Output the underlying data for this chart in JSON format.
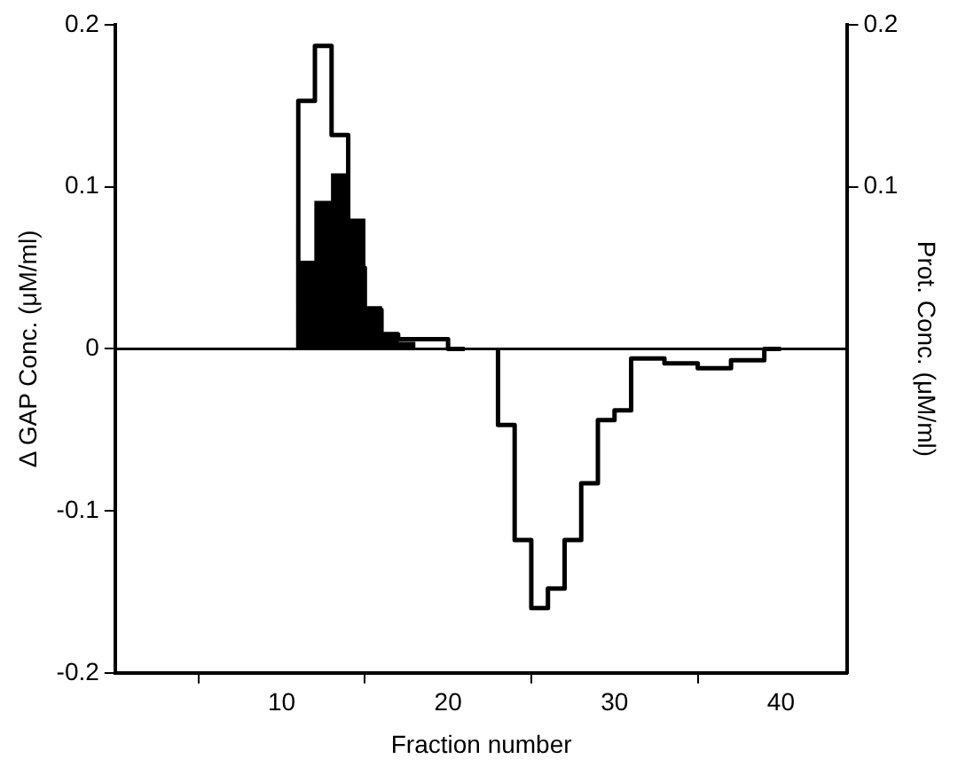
{
  "chart_data": {
    "type": "histogram",
    "xlabel": "Fraction number",
    "ylabel": "Δ GAP Conc. (μM/ml)",
    "y2label": "Prot. Conc. (μM/ml)",
    "xlim": [
      0,
      44
    ],
    "xticks": [
      10,
      20,
      30,
      40
    ],
    "ylim": [
      -0.2,
      0.2
    ],
    "yticks": [
      -0.2,
      -0.1,
      0,
      0.1,
      0.2
    ],
    "y2lim": [
      -0.2,
      0.2
    ],
    "y2ticks": [
      0.1,
      0.2
    ],
    "grid": false,
    "legend": false,
    "ref_lines": [
      {
        "axis": "y",
        "value": 0,
        "color": "#000000"
      }
    ],
    "series": [
      {
        "type": "step",
        "color": "#000000",
        "x": [
          11,
          11,
          12,
          13,
          14,
          15,
          16,
          17,
          18,
          19,
          20,
          21
        ],
        "values": [
          0,
          0.094,
          0.153,
          0.187,
          0.132,
          0.05,
          0.024,
          0.009,
          0.006,
          0.006,
          0.006,
          0
        ]
      },
      {
        "color": "#000000",
        "bins": [
          11,
          12,
          13,
          14,
          15,
          16,
          17,
          18
        ],
        "values": [
          0.054,
          0.091,
          0.108,
          0.08,
          0.026,
          0.01,
          0.004
        ]
      },
      {
        "type": "step",
        "color": "#000000",
        "x": [
          23,
          23,
          24,
          25,
          26,
          27,
          28,
          29,
          30,
          31,
          32,
          33,
          34,
          35,
          36,
          37,
          38,
          39,
          40
        ],
        "values": [
          0,
          -0.028,
          -0.047,
          -0.118,
          -0.16,
          -0.148,
          -0.118,
          -0.083,
          -0.044,
          -0.038,
          -0.006,
          -0.006,
          -0.009,
          -0.009,
          -0.012,
          -0.012,
          -0.007,
          -0.007,
          0
        ]
      }
    ]
  }
}
